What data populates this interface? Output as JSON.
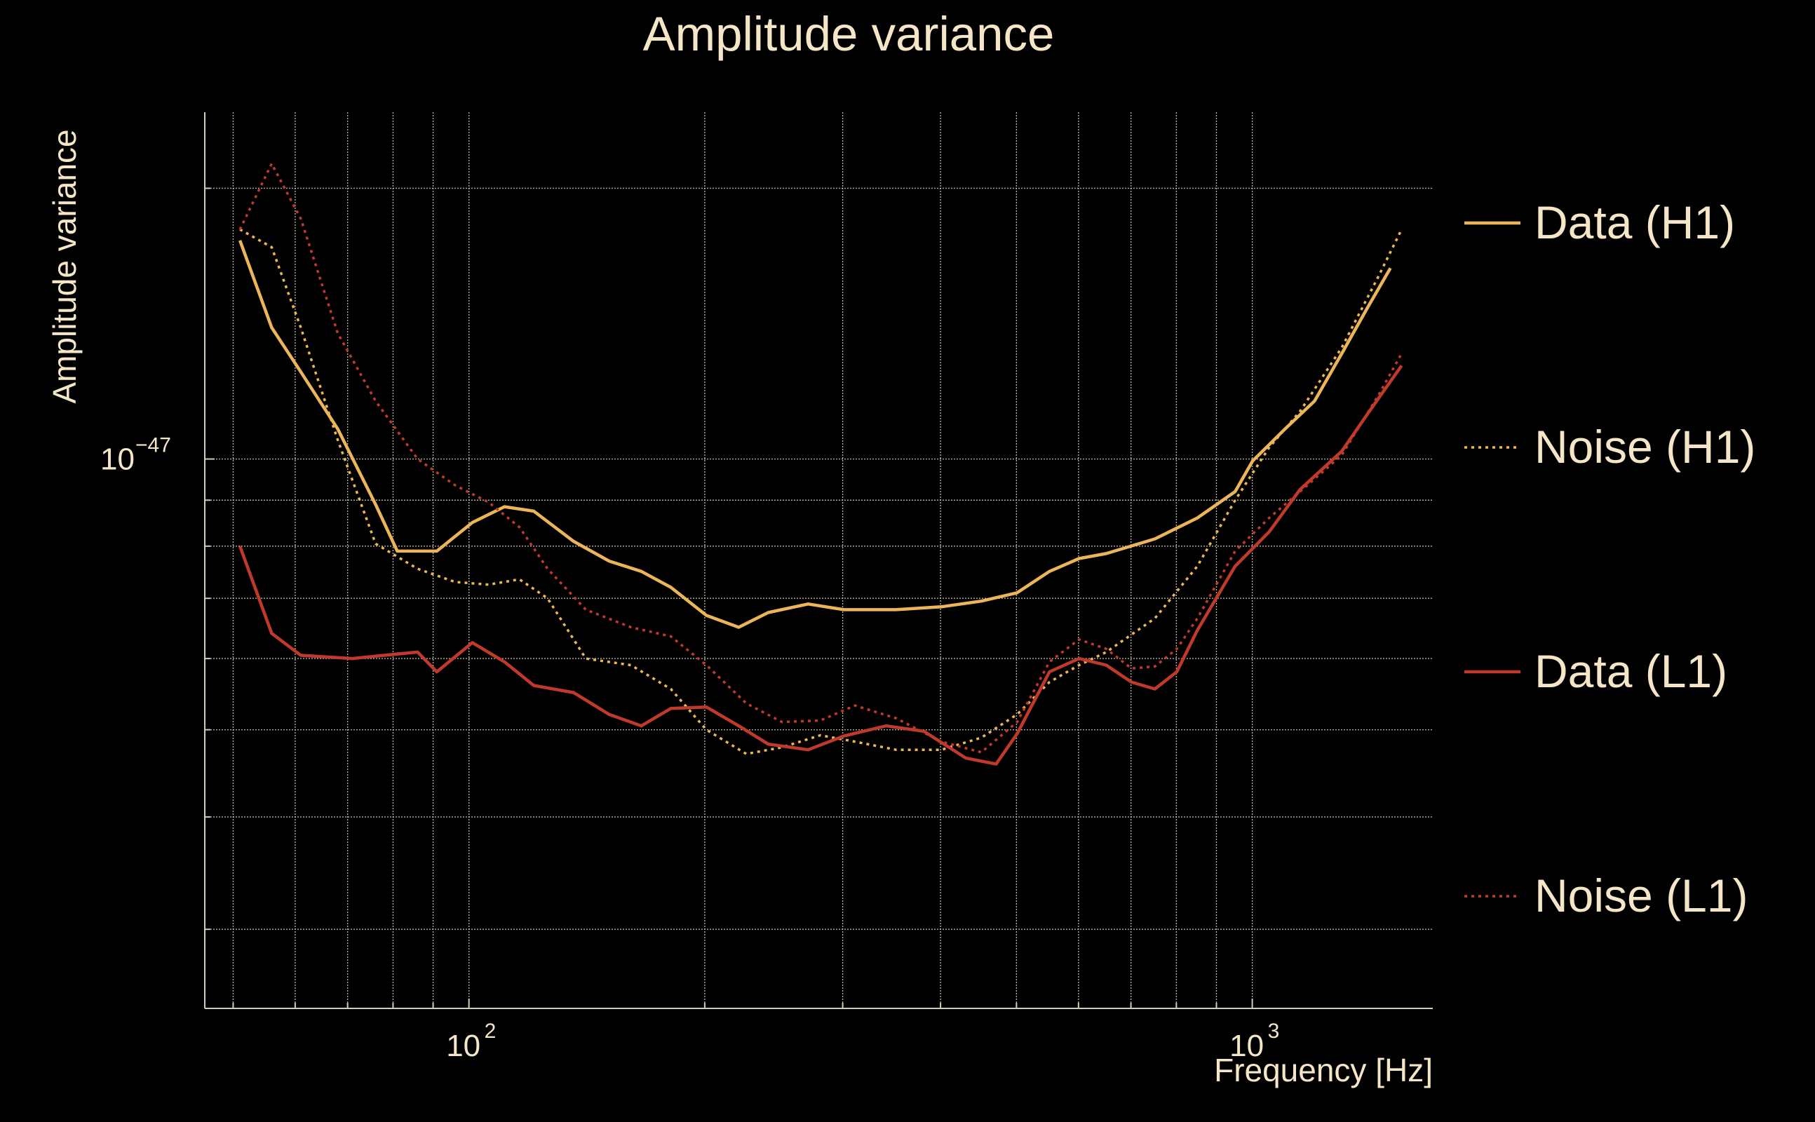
{
  "chart_data": {
    "type": "line",
    "title": "Amplitude variance",
    "xlabel": "Frequency [Hz]",
    "ylabel": "Amplitude variance",
    "xscale": "log",
    "yscale": "log",
    "xlim": [
      46,
      1700
    ],
    "ylim": [
      2.45e-48,
      2.43e-47
    ],
    "x_ticks": [
      {
        "value": 100,
        "base": "10",
        "exp": "2"
      },
      {
        "value": 1000,
        "base": "10",
        "exp": "3"
      }
    ],
    "y_ticks": [
      {
        "value": 1e-47,
        "base": "10",
        "exp": "−47"
      }
    ],
    "grid": true,
    "legend_position": "right",
    "series": [
      {
        "name": "Data (H1)",
        "color": "#ecb55a",
        "style": "solid",
        "points": [
          [
            51,
            1.75e-47
          ],
          [
            56,
            1.4e-47
          ],
          [
            61,
            1.25e-47
          ],
          [
            68,
            1.08e-47
          ],
          [
            76,
            8.9e-48
          ],
          [
            81,
            7.9e-48
          ],
          [
            91,
            7.9e-48
          ],
          [
            101,
            8.5e-48
          ],
          [
            111,
            8.85e-48
          ],
          [
            121,
            8.75e-48
          ],
          [
            136,
            8.1e-48
          ],
          [
            151,
            7.7e-48
          ],
          [
            166,
            7.5e-48
          ],
          [
            181,
            7.2e-48
          ],
          [
            201,
            6.7e-48
          ],
          [
            221,
            6.5e-48
          ],
          [
            241,
            6.75e-48
          ],
          [
            271,
            6.9e-48
          ],
          [
            301,
            6.8e-48
          ],
          [
            351,
            6.8e-48
          ],
          [
            401,
            6.85e-48
          ],
          [
            451,
            6.95e-48
          ],
          [
            501,
            7.1e-48
          ],
          [
            551,
            7.5e-48
          ],
          [
            601,
            7.75e-48
          ],
          [
            651,
            7.85e-48
          ],
          [
            751,
            8.15e-48
          ],
          [
            851,
            8.6e-48
          ],
          [
            951,
            9.2e-48
          ],
          [
            1001,
            9.95e-48
          ],
          [
            1101,
            1.08e-47
          ],
          [
            1201,
            1.16e-47
          ],
          [
            1301,
            1.31e-47
          ],
          [
            1401,
            1.47e-47
          ],
          [
            1501,
            1.63e-47
          ]
        ]
      },
      {
        "name": "Noise (H1)",
        "color": "#ecb55a",
        "style": "dotted",
        "points": [
          [
            51,
            1.8e-47
          ],
          [
            56,
            1.72e-47
          ],
          [
            61,
            1.4e-47
          ],
          [
            68,
            1.05e-47
          ],
          [
            76,
            8.05e-48
          ],
          [
            86,
            7.55e-48
          ],
          [
            96,
            7.3e-48
          ],
          [
            106,
            7.25e-48
          ],
          [
            116,
            7.35e-48
          ],
          [
            126,
            7e-48
          ],
          [
            141,
            6e-48
          ],
          [
            161,
            5.9e-48
          ],
          [
            181,
            5.55e-48
          ],
          [
            201,
            5e-48
          ],
          [
            226,
            4.7e-48
          ],
          [
            251,
            4.78e-48
          ],
          [
            281,
            4.93e-48
          ],
          [
            311,
            4.85e-48
          ],
          [
            351,
            4.75e-48
          ],
          [
            401,
            4.75e-48
          ],
          [
            451,
            4.9e-48
          ],
          [
            501,
            5.2e-48
          ],
          [
            551,
            5.65e-48
          ],
          [
            601,
            5.9e-48
          ],
          [
            651,
            6.1e-48
          ],
          [
            751,
            6.65e-48
          ],
          [
            851,
            7.6e-48
          ],
          [
            951,
            9e-48
          ],
          [
            1051,
            1.03e-47
          ],
          [
            1151,
            1.13e-47
          ],
          [
            1301,
            1.33e-47
          ],
          [
            1451,
            1.6e-47
          ],
          [
            1551,
            1.8e-47
          ]
        ]
      },
      {
        "name": "Data (L1)",
        "color": "#bf3a2c",
        "style": "solid",
        "points": [
          [
            51,
            8e-48
          ],
          [
            56,
            6.4e-48
          ],
          [
            61,
            6.05e-48
          ],
          [
            71,
            6e-48
          ],
          [
            81,
            6.07e-48
          ],
          [
            86,
            6.1e-48
          ],
          [
            91,
            5.8e-48
          ],
          [
            101,
            6.25e-48
          ],
          [
            111,
            5.95e-48
          ],
          [
            121,
            5.6e-48
          ],
          [
            136,
            5.5e-48
          ],
          [
            151,
            5.2e-48
          ],
          [
            166,
            5.05e-48
          ],
          [
            181,
            5.28e-48
          ],
          [
            201,
            5.3e-48
          ],
          [
            221,
            5.05e-48
          ],
          [
            241,
            4.82e-48
          ],
          [
            271,
            4.75e-48
          ],
          [
            301,
            4.92e-48
          ],
          [
            341,
            5.05e-48
          ],
          [
            381,
            4.98e-48
          ],
          [
            431,
            4.65e-48
          ],
          [
            471,
            4.58e-48
          ],
          [
            501,
            4.95e-48
          ],
          [
            551,
            5.8e-48
          ],
          [
            601,
            6e-48
          ],
          [
            651,
            5.9e-48
          ],
          [
            701,
            5.65e-48
          ],
          [
            751,
            5.55e-48
          ],
          [
            801,
            5.8e-48
          ],
          [
            851,
            6.45e-48
          ],
          [
            951,
            7.6e-48
          ],
          [
            1051,
            8.3e-48
          ],
          [
            1151,
            9.25e-48
          ],
          [
            1301,
            1.02e-47
          ],
          [
            1401,
            1.12e-47
          ],
          [
            1551,
            1.27e-47
          ]
        ]
      },
      {
        "name": "Noise (L1)",
        "color": "#bf3a2c",
        "style": "dotted",
        "points": [
          [
            51,
            1.8e-47
          ],
          [
            56,
            2.13e-47
          ],
          [
            61,
            1.85e-47
          ],
          [
            68,
            1.38e-47
          ],
          [
            76,
            1.16e-47
          ],
          [
            86,
            1e-47
          ],
          [
            96,
            9.35e-48
          ],
          [
            106,
            8.95e-48
          ],
          [
            116,
            8.4e-48
          ],
          [
            126,
            7.55e-48
          ],
          [
            141,
            6.8e-48
          ],
          [
            161,
            6.5e-48
          ],
          [
            181,
            6.35e-48
          ],
          [
            201,
            5.9e-48
          ],
          [
            226,
            5.35e-48
          ],
          [
            251,
            5.1e-48
          ],
          [
            281,
            5.12e-48
          ],
          [
            311,
            5.32e-48
          ],
          [
            351,
            5.15e-48
          ],
          [
            401,
            4.85e-48
          ],
          [
            451,
            4.72e-48
          ],
          [
            501,
            5.1e-48
          ],
          [
            551,
            5.95e-48
          ],
          [
            601,
            6.3e-48
          ],
          [
            651,
            6.15e-48
          ],
          [
            701,
            5.85e-48
          ],
          [
            751,
            5.88e-48
          ],
          [
            801,
            6.15e-48
          ],
          [
            851,
            6.65e-48
          ],
          [
            951,
            7.9e-48
          ],
          [
            1051,
            8.6e-48
          ],
          [
            1151,
            9.2e-48
          ],
          [
            1301,
            1.01e-47
          ],
          [
            1451,
            1.18e-47
          ],
          [
            1551,
            1.31e-47
          ]
        ]
      }
    ]
  }
}
